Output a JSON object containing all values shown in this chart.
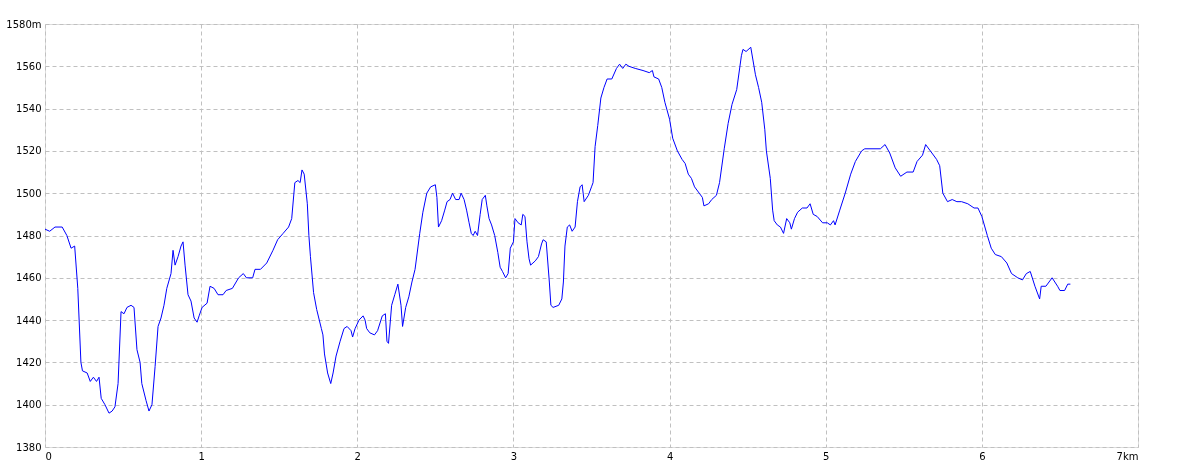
{
  "chart_data": {
    "type": "line",
    "x": [
      0,
      0.03,
      0.064,
      0.11,
      0.14,
      0.167,
      0.19,
      0.21,
      0.23,
      0.24,
      0.27,
      0.29,
      0.31,
      0.33,
      0.346,
      0.36,
      0.384,
      0.41,
      0.43,
      0.448,
      0.468,
      0.487,
      0.506,
      0.525,
      0.551,
      0.57,
      0.589,
      0.609,
      0.62,
      0.647,
      0.666,
      0.685,
      0.705,
      0.724,
      0.743,
      0.762,
      0.78,
      0.807,
      0.82,
      0.833,
      0.852,
      0.871,
      0.884,
      0.897,
      0.916,
      0.935,
      0.955,
      0.974,
      0.987,
      1.006,
      1.038,
      1.057,
      1.083,
      1.108,
      1.14,
      1.16,
      1.2,
      1.24,
      1.27,
      1.29,
      1.33,
      1.345,
      1.38,
      1.42,
      1.46,
      1.49,
      1.525,
      1.56,
      1.58,
      1.6,
      1.62,
      1.634,
      1.646,
      1.66,
      1.68,
      1.69,
      1.7,
      1.72,
      1.74,
      1.77,
      1.78,
      1.79,
      1.81,
      1.83,
      1.845,
      1.864,
      1.89,
      1.915,
      1.935,
      1.96,
      1.97,
      1.986,
      2.011,
      2.037,
      2.05,
      2.06,
      2.08,
      2.11,
      2.13,
      2.16,
      2.18,
      2.19,
      2.2,
      2.22,
      2.24,
      2.26,
      2.28,
      2.29,
      2.31,
      2.33,
      2.35,
      2.37,
      2.4,
      2.42,
      2.445,
      2.47,
      2.5,
      2.51,
      2.52,
      2.54,
      2.56,
      2.575,
      2.594,
      2.61,
      2.63,
      2.652,
      2.665,
      2.684,
      2.7,
      2.716,
      2.73,
      2.742,
      2.755,
      2.77,
      2.787,
      2.8,
      2.82,
      2.83,
      2.844,
      2.86,
      2.88,
      2.9,
      2.915,
      2.93,
      2.95,
      2.966,
      2.98,
      3.0,
      3.01,
      3.03,
      3.05,
      3.06,
      3.074,
      3.087,
      3.1,
      3.11,
      3.14,
      3.16,
      3.18,
      3.19,
      3.21,
      3.23,
      3.24,
      3.254,
      3.29,
      3.31,
      3.32,
      3.33,
      3.345,
      3.36,
      3.376,
      3.395,
      3.41,
      3.427,
      3.44,
      3.453,
      3.48,
      3.5,
      3.51,
      3.523,
      3.54,
      3.56,
      3.58,
      3.6,
      3.63,
      3.66,
      3.68,
      3.7,
      3.72,
      3.74,
      3.78,
      3.83,
      3.87,
      3.89,
      3.9,
      3.93,
      3.95,
      3.97,
      4.0,
      4.02,
      4.05,
      4.08,
      4.1,
      4.12,
      4.14,
      4.16,
      4.19,
      4.21,
      4.22,
      4.25,
      4.27,
      4.3,
      4.32,
      4.35,
      4.375,
      4.4,
      4.43,
      4.46,
      4.47,
      4.49,
      4.52,
      4.55,
      4.57,
      4.59,
      4.61,
      4.62,
      4.645,
      4.66,
      4.67,
      4.69,
      4.71,
      4.73,
      4.75,
      4.77,
      4.78,
      4.8,
      4.82,
      4.85,
      4.88,
      4.9,
      4.92,
      4.945,
      4.98,
      5.01,
      5.03,
      5.05,
      5.06,
      5.09,
      5.125,
      5.16,
      5.19,
      5.23,
      5.25,
      5.35,
      5.38,
      5.41,
      5.445,
      5.48,
      5.52,
      5.56,
      5.585,
      5.62,
      5.64,
      5.68,
      5.71,
      5.73,
      5.75,
      5.78,
      5.81,
      5.84,
      5.87,
      5.91,
      5.95,
      5.975,
      6.0,
      6.035,
      6.06,
      6.086,
      6.125,
      6.16,
      6.19,
      6.23,
      6.26,
      6.285,
      6.31,
      6.34,
      6.37,
      6.38,
      6.41,
      6.45,
      6.485,
      6.5,
      6.53,
      6.55,
      6.567
    ],
    "series": [
      {
        "color": "#0000ff",
        "values": [
          1483,
          1482,
          1484,
          1484,
          1480,
          1474,
          1475,
          1455,
          1420,
          1416,
          1415,
          1411,
          1413,
          1411,
          1413,
          1403,
          1400,
          1396,
          1397,
          1399,
          1410,
          1444,
          1443,
          1446,
          1447,
          1446,
          1426,
          1420,
          1410,
          1402,
          1397,
          1400,
          1418,
          1437,
          1441,
          1447,
          1455,
          1462,
          1473,
          1466,
          1470,
          1475,
          1477,
          1466,
          1452,
          1449,
          1441,
          1439,
          1442,
          1446,
          1448,
          1456,
          1455,
          1452,
          1452,
          1454,
          1455,
          1460,
          1462,
          1460,
          1460,
          1464,
          1464,
          1467,
          1473,
          1478,
          1481,
          1484,
          1488,
          1505,
          1506,
          1505,
          1511,
          1509,
          1495,
          1480,
          1470,
          1453,
          1445,
          1436,
          1433,
          1424,
          1415,
          1410,
          1415,
          1423,
          1430,
          1436,
          1437,
          1435,
          1432,
          1436,
          1440,
          1442,
          1440,
          1436,
          1434,
          1433,
          1435,
          1442,
          1443,
          1430,
          1429,
          1447,
          1452,
          1457,
          1447,
          1437,
          1446,
          1451,
          1458,
          1464,
          1481,
          1491,
          1500,
          1503,
          1504,
          1498,
          1484,
          1487,
          1492,
          1496,
          1497,
          1500,
          1497,
          1497,
          1500,
          1497,
          1492,
          1486,
          1481,
          1480,
          1482,
          1480,
          1490,
          1497,
          1499,
          1494,
          1488,
          1485,
          1480,
          1472,
          1465,
          1463,
          1460,
          1462,
          1474,
          1477,
          1488,
          1486,
          1485,
          1490,
          1489,
          1477,
          1469,
          1466,
          1468,
          1470,
          1476,
          1478,
          1477,
          1458,
          1447,
          1446,
          1447,
          1450,
          1458,
          1475,
          1484,
          1485,
          1482,
          1484,
          1496,
          1503,
          1504,
          1496,
          1499,
          1503,
          1505,
          1522,
          1532,
          1545,
          1550,
          1554,
          1554,
          1559,
          1561,
          1559,
          1561,
          1560,
          1559,
          1558,
          1557,
          1558,
          1555,
          1554,
          1550,
          1543,
          1535,
          1526,
          1520,
          1516,
          1514,
          1509,
          1507,
          1503,
          1500,
          1498,
          1494,
          1495,
          1497,
          1499,
          1505,
          1521,
          1533,
          1542,
          1549,
          1565,
          1568,
          1567,
          1569,
          1556,
          1550,
          1543,
          1530,
          1520,
          1507,
          1492,
          1487,
          1485,
          1484,
          1481,
          1488,
          1486,
          1483,
          1488,
          1491,
          1493,
          1493,
          1495,
          1490,
          1489,
          1486,
          1486,
          1485,
          1487,
          1485,
          1492,
          1500,
          1509,
          1515,
          1520,
          1521,
          1521,
          1523,
          1519,
          1512,
          1508,
          1510,
          1510,
          1515,
          1518,
          1523,
          1519,
          1516,
          1513,
          1500,
          1496,
          1497,
          1496,
          1496,
          1495,
          1493,
          1493,
          1489,
          1480,
          1474,
          1471,
          1470,
          1467,
          1462,
          1460,
          1459,
          1462,
          1463,
          1456,
          1450,
          1456,
          1456,
          1460,
          1456,
          1454,
          1454,
          1457,
          1457
        ]
      }
    ],
    "xlim": [
      0,
      7
    ],
    "xticks": [
      0,
      1,
      2,
      3,
      4,
      5,
      6,
      {
        "value": 7,
        "label": "7km"
      }
    ],
    "ylim": [
      1380,
      1580
    ],
    "yticks": [
      1380,
      1400,
      1420,
      1440,
      1460,
      1480,
      1500,
      1520,
      1540,
      1560,
      {
        "value": 1580,
        "label": "1580m"
      }
    ],
    "grid": true,
    "marker": "none",
    "line_style": "solid"
  }
}
